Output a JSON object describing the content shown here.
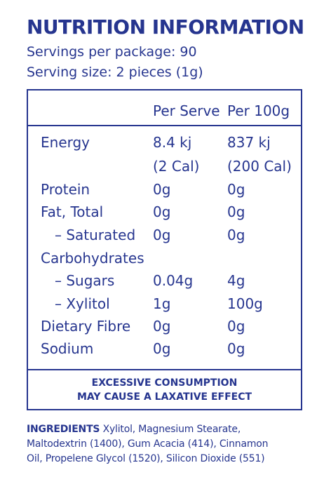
{
  "title": "NUTRITION INFORMATION",
  "servings_per_package": "Servings per package: 90",
  "serving_size": "Serving size: 2 pieces (1g)",
  "table": {
    "header_per_serve": "Per Serve",
    "header_per_100g": "Per 100g",
    "rows": [
      {
        "name": "Energy",
        "per_serve": "8.4 kj",
        "per_100g": "837 kj"
      },
      {
        "name": "",
        "per_serve": "(2 Cal)",
        "per_100g": "(200 Cal)"
      },
      {
        "name": "Protein",
        "per_serve": "0g",
        "per_100g": "0g"
      },
      {
        "name": "Fat, Total",
        "per_serve": "0g",
        "per_100g": "0g"
      },
      {
        "name": "– Saturated",
        "per_serve": "0g",
        "per_100g": "0g"
      },
      {
        "name": "Carbohydrates",
        "per_serve": "",
        "per_100g": ""
      },
      {
        "name": "– Sugars",
        "per_serve": "0.04g",
        "per_100g": "4g"
      },
      {
        "name": "– Xylitol",
        "per_serve": "1g",
        "per_100g": "100g"
      },
      {
        "name": "Dietary Fibre",
        "per_serve": "0g",
        "per_100g": "0g"
      },
      {
        "name": "Sodium",
        "per_serve": "0g",
        "per_100g": "0g"
      }
    ]
  },
  "warning": {
    "line1": "EXCESSIVE CONSUMPTION",
    "line2": "MAY CAUSE A LAXATIVE EFFECT"
  },
  "ingredients": {
    "label": "INGREDIENTS",
    "line1": " Xylitol, Magnesium Stearate,",
    "line2": "Maltodextrin (1400), Gum Acacia (414), Cinnamon",
    "line3": "Oil, Propelene Glycol (1520), Silicon Dioxide (551)"
  },
  "colors": {
    "primary": "#26358f",
    "background": "#ffffff"
  }
}
